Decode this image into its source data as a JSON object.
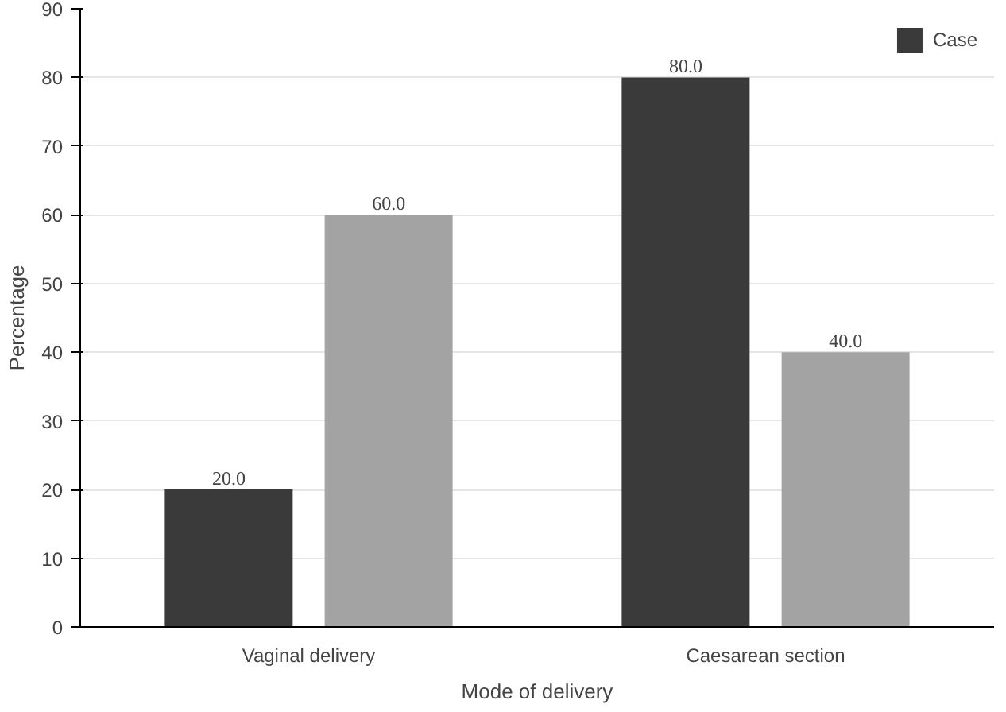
{
  "chart_data": {
    "type": "bar",
    "xlabel": "Mode of delivery",
    "ylabel": "Percentage",
    "categories": [
      "Vaginal delivery",
      "Caesarean section"
    ],
    "series": [
      {
        "name": "Case",
        "color": "#3a3a3a",
        "values": [
          20,
          80
        ],
        "value_labels": [
          "20.0",
          "80.0"
        ]
      },
      {
        "color": "#a3a3a3",
        "values": [
          60,
          40
        ],
        "value_labels": [
          "60.0",
          "40.0"
        ]
      }
    ],
    "ylim": [
      0,
      90
    ],
    "yticks": [
      0,
      10,
      20,
      30,
      40,
      50,
      60,
      70,
      80,
      90
    ],
    "grid": "y",
    "legend": "top right"
  }
}
